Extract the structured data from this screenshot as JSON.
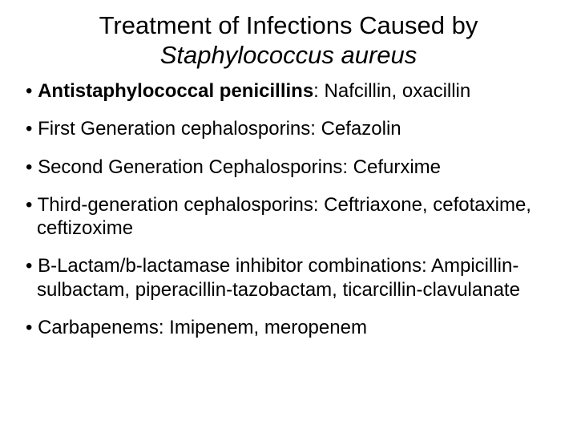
{
  "title": {
    "line1": "Treatment of Infections Caused by",
    "line2": "Staphylococcus aureus",
    "line2_italic": true,
    "fontsize": 31,
    "align": "center",
    "color": "#000000"
  },
  "bullets": [
    {
      "bold_prefix": "Antistaphylococcal penicillins",
      "rest": ": Nafcillin, oxacillin"
    },
    {
      "bold_prefix": "",
      "rest": "First Generation cephalosporins:  Cefazolin"
    },
    {
      "bold_prefix": "",
      "rest": "Second Generation Cephalosporins: Cefurxime"
    },
    {
      "bold_prefix": "",
      "rest": "Third-generation cephalosporins: Ceftriaxone, cefotaxime, ceftizoxime"
    },
    {
      "bold_prefix": "",
      "rest": "B-Lactam/b-lactamase inhibitor combinations: Ampicillin-sulbactam, piperacillin-tazobactam, ticarcillin-clavulanate"
    },
    {
      "bold_prefix": "",
      "rest": "Carbapenems: Imipenem, meropenem"
    }
  ],
  "style": {
    "background_color": "#ffffff",
    "text_color": "#000000",
    "body_fontsize": 24,
    "bullet_marker": "•",
    "font_family": "Arial"
  }
}
